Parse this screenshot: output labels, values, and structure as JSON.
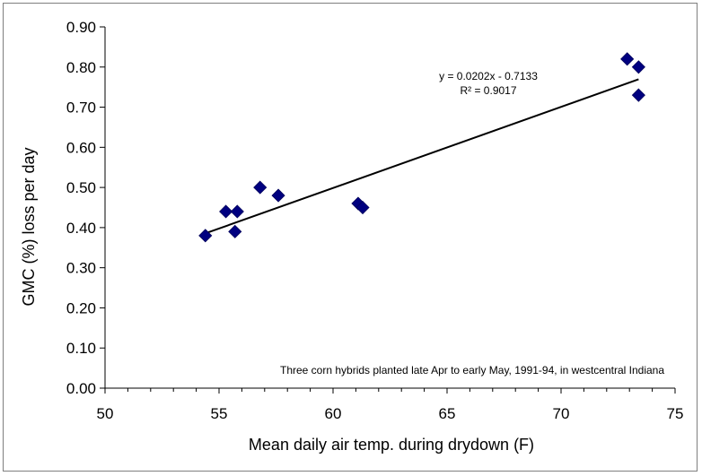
{
  "chart_data": {
    "type": "scatter",
    "xlabel": "Mean daily air temp. during drydown (F)",
    "ylabel": "GMC (%) loss per day",
    "xlim": [
      50,
      75
    ],
    "ylim": [
      0.0,
      0.9
    ],
    "x_ticks": [
      "50",
      "55",
      "60",
      "65",
      "70",
      "75"
    ],
    "y_ticks": [
      "0.00",
      "0.10",
      "0.20",
      "0.30",
      "0.40",
      "0.50",
      "0.60",
      "0.70",
      "0.80",
      "0.90"
    ],
    "grid": false,
    "marker": "diamond",
    "marker_color": "#000080",
    "points": [
      {
        "x": 54.4,
        "y": 0.38
      },
      {
        "x": 55.3,
        "y": 0.44
      },
      {
        "x": 55.8,
        "y": 0.44
      },
      {
        "x": 55.7,
        "y": 0.39
      },
      {
        "x": 56.8,
        "y": 0.5
      },
      {
        "x": 57.6,
        "y": 0.48
      },
      {
        "x": 61.1,
        "y": 0.46
      },
      {
        "x": 61.3,
        "y": 0.45
      },
      {
        "x": 72.9,
        "y": 0.82
      },
      {
        "x": 73.4,
        "y": 0.8
      },
      {
        "x": 73.4,
        "y": 0.73
      }
    ],
    "trendline": {
      "slope": 0.0202,
      "intercept": -0.7133,
      "x_range": [
        54.4,
        73.4
      ],
      "color": "#000000",
      "equation_label": "y = 0.0202x - 0.7133",
      "r2_label": "R² = 0.9017"
    },
    "annotation": "Three  corn hybrids planted late Apr to early May, 1991-94,  in westcentral  Indiana"
  }
}
